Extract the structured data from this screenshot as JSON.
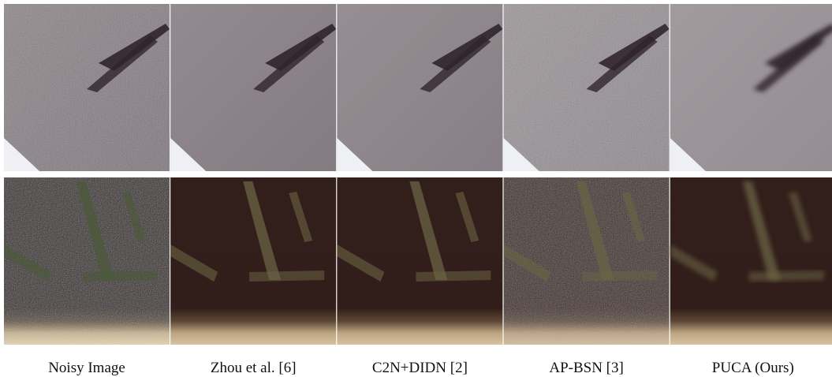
{
  "figure": {
    "captions": [
      "Noisy Image",
      "Zhou et al. [6]",
      "C2N+DIDN [2]",
      "AP-BSN [3]",
      "PUCA (Ours)"
    ]
  }
}
